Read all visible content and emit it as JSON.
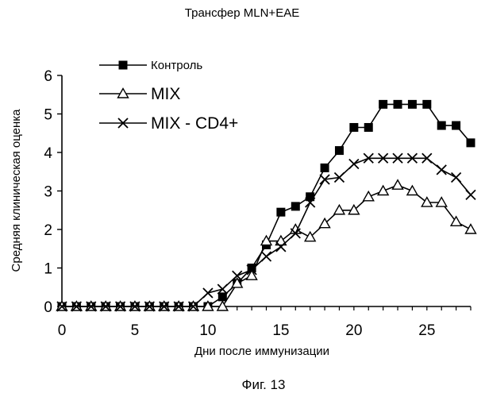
{
  "chart_data": {
    "type": "line",
    "title": "Трансфер MLN+EAE",
    "xlabel": "Дни после иммунизации",
    "ylabel": "Средняя клиническая оценка",
    "xlim": [
      0,
      28
    ],
    "ylim": [
      0,
      6
    ],
    "x_ticks": [
      "0",
      "5",
      "10",
      "15",
      "20",
      "25"
    ],
    "y_ticks": [
      "0",
      "1",
      "2",
      "3",
      "4",
      "5",
      "6"
    ],
    "grid": false,
    "legend_position": "top-left",
    "series": [
      {
        "name": "Контроль",
        "marker": "filled-square",
        "color": "#000000",
        "points": [
          [
            0,
            0
          ],
          [
            1,
            0
          ],
          [
            2,
            0
          ],
          [
            3,
            0
          ],
          [
            4,
            0
          ],
          [
            5,
            0
          ],
          [
            6,
            0
          ],
          [
            7,
            0
          ],
          [
            8,
            0
          ],
          [
            9,
            0
          ],
          [
            10,
            0
          ],
          [
            11,
            0.25
          ],
          [
            12,
            0.6
          ],
          [
            13,
            1.0
          ],
          [
            14,
            1.6
          ],
          [
            15,
            2.45
          ],
          [
            16,
            2.6
          ],
          [
            17,
            2.85
          ],
          [
            18,
            3.6
          ],
          [
            19,
            4.05
          ],
          [
            20,
            4.65
          ],
          [
            21,
            4.65
          ],
          [
            22,
            5.25
          ],
          [
            23,
            5.25
          ],
          [
            24,
            5.25
          ],
          [
            25,
            5.25
          ],
          [
            26,
            4.7
          ],
          [
            27,
            4.7
          ],
          [
            28,
            4.25
          ]
        ]
      },
      {
        "name": "MIX",
        "marker": "open-triangle",
        "color": "#000000",
        "points": [
          [
            0,
            0
          ],
          [
            1,
            0
          ],
          [
            2,
            0
          ],
          [
            3,
            0
          ],
          [
            4,
            0
          ],
          [
            5,
            0
          ],
          [
            6,
            0
          ],
          [
            7,
            0
          ],
          [
            8,
            0
          ],
          [
            9,
            0
          ],
          [
            10,
            0
          ],
          [
            11,
            0
          ],
          [
            12,
            0.6
          ],
          [
            13,
            0.8
          ],
          [
            14,
            1.7
          ],
          [
            15,
            1.7
          ],
          [
            16,
            2.0
          ],
          [
            17,
            1.8
          ],
          [
            18,
            2.15
          ],
          [
            19,
            2.5
          ],
          [
            20,
            2.5
          ],
          [
            21,
            2.85
          ],
          [
            22,
            3.0
          ],
          [
            23,
            3.15
          ],
          [
            24,
            3.0
          ],
          [
            25,
            2.7
          ],
          [
            26,
            2.7
          ],
          [
            27,
            2.2
          ],
          [
            28,
            2.0
          ]
        ]
      },
      {
        "name": "MIX - CD4+",
        "marker": "x-cross",
        "color": "#000000",
        "points": [
          [
            0,
            0
          ],
          [
            1,
            0
          ],
          [
            2,
            0
          ],
          [
            3,
            0
          ],
          [
            4,
            0
          ],
          [
            5,
            0
          ],
          [
            6,
            0
          ],
          [
            7,
            0
          ],
          [
            8,
            0
          ],
          [
            9,
            0
          ],
          [
            10,
            0.35
          ],
          [
            11,
            0.45
          ],
          [
            12,
            0.8
          ],
          [
            13,
            0.95
          ],
          [
            14,
            1.3
          ],
          [
            15,
            1.55
          ],
          [
            16,
            1.9
          ],
          [
            17,
            2.7
          ],
          [
            18,
            3.3
          ],
          [
            19,
            3.35
          ],
          [
            20,
            3.7
          ],
          [
            21,
            3.85
          ],
          [
            22,
            3.85
          ],
          [
            23,
            3.85
          ],
          [
            24,
            3.85
          ],
          [
            25,
            3.85
          ],
          [
            26,
            3.55
          ],
          [
            27,
            3.35
          ],
          [
            28,
            2.9
          ]
        ]
      }
    ]
  },
  "caption": "Фиг. 13"
}
